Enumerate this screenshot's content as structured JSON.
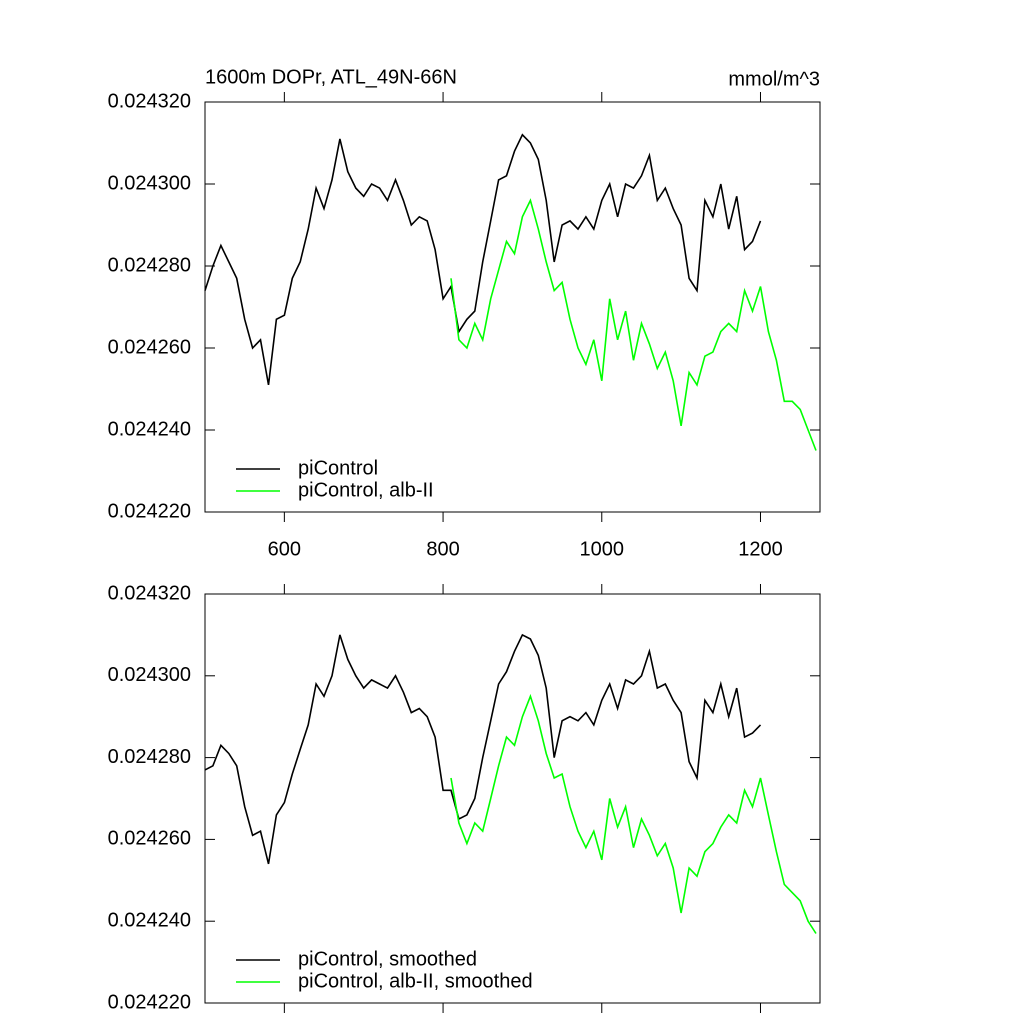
{
  "chart_data": [
    {
      "type": "line",
      "title": "1600m DOPr, ATL_49N-66N",
      "units": "mmol/m^3",
      "x": [
        500,
        510,
        520,
        530,
        540,
        550,
        560,
        570,
        580,
        590,
        600,
        610,
        620,
        630,
        640,
        650,
        660,
        670,
        680,
        690,
        700,
        710,
        720,
        730,
        740,
        750,
        760,
        770,
        780,
        790,
        800,
        810,
        820,
        830,
        840,
        850,
        860,
        870,
        880,
        890,
        900,
        910,
        920,
        930,
        940,
        950,
        960,
        970,
        980,
        990,
        1000,
        1010,
        1020,
        1030,
        1040,
        1050,
        1060,
        1070,
        1080,
        1090,
        1100,
        1110,
        1120,
        1130,
        1140,
        1150,
        1160,
        1170,
        1180,
        1190,
        1200,
        1210,
        1220,
        1230,
        1240,
        1250,
        1260,
        1270
      ],
      "xlim": [
        500,
        1275
      ],
      "xticks": [
        600,
        800,
        1000,
        1200
      ],
      "x_tick_labels": true,
      "ylim": [
        0.02422,
        0.02432
      ],
      "yticks": [
        {
          "value": 0.02422,
          "label": "0.024220"
        },
        {
          "value": 0.02424,
          "label": "0.024240"
        },
        {
          "value": 0.02426,
          "label": "0.024260"
        },
        {
          "value": 0.02428,
          "label": "0.024280"
        },
        {
          "value": 0.0243,
          "label": "0.024300"
        },
        {
          "value": 0.02432,
          "label": "0.024320"
        }
      ],
      "legend": "lower left",
      "series": [
        {
          "name": "piControl",
          "color": "#000000",
          "values": [
            0.024274,
            0.02428,
            0.024285,
            0.024281,
            0.024277,
            0.024267,
            0.02426,
            0.024262,
            0.024251,
            0.024267,
            0.024268,
            0.024277,
            0.024281,
            0.024289,
            0.024299,
            0.024294,
            0.024301,
            0.024311,
            0.024303,
            0.024299,
            0.024297,
            0.0243,
            0.024299,
            0.024296,
            0.024301,
            0.024296,
            0.02429,
            0.024292,
            0.024291,
            0.024284,
            0.024272,
            0.024275,
            0.024264,
            0.024267,
            0.024269,
            0.024281,
            0.024291,
            0.024301,
            0.024302,
            0.024308,
            0.024312,
            0.02431,
            0.024306,
            0.024296,
            0.024281,
            0.02429,
            0.024291,
            0.024289,
            0.024292,
            0.024289,
            0.024296,
            0.0243,
            0.024292,
            0.0243,
            0.024299,
            0.024302,
            0.024307,
            0.024296,
            0.024299,
            0.024294,
            0.02429,
            0.024277,
            0.024274,
            0.024296,
            0.024292,
            0.0243,
            0.024289,
            0.024297,
            0.024284,
            0.024286,
            0.024291,
            null,
            null,
            null,
            null,
            null,
            null,
            null
          ]
        },
        {
          "name": "piControl, alb-II",
          "color": "#00ff00",
          "values": [
            null,
            null,
            null,
            null,
            null,
            null,
            null,
            null,
            null,
            null,
            null,
            null,
            null,
            null,
            null,
            null,
            null,
            null,
            null,
            null,
            null,
            null,
            null,
            null,
            null,
            null,
            null,
            null,
            null,
            null,
            null,
            0.024277,
            0.024262,
            0.02426,
            0.024266,
            0.024262,
            0.024272,
            0.024279,
            0.024286,
            0.024283,
            0.024292,
            0.024296,
            0.024289,
            0.024281,
            0.024274,
            0.024276,
            0.024267,
            0.02426,
            0.024256,
            0.024262,
            0.024252,
            0.024272,
            0.024262,
            0.024269,
            0.024257,
            0.024266,
            0.024261,
            0.024255,
            0.024259,
            0.024252,
            0.024241,
            0.024254,
            0.024251,
            0.024258,
            0.024259,
            0.024264,
            0.024266,
            0.024264,
            0.024274,
            0.024269,
            0.024275,
            0.024264,
            0.024257,
            0.024247,
            0.024247,
            0.024245,
            0.02424,
            0.024235
          ]
        }
      ]
    },
    {
      "type": "line",
      "x": [
        500,
        510,
        520,
        530,
        540,
        550,
        560,
        570,
        580,
        590,
        600,
        610,
        620,
        630,
        640,
        650,
        660,
        670,
        680,
        690,
        700,
        710,
        720,
        730,
        740,
        750,
        760,
        770,
        780,
        790,
        800,
        810,
        820,
        830,
        840,
        850,
        860,
        870,
        880,
        890,
        900,
        910,
        920,
        930,
        940,
        950,
        960,
        970,
        980,
        990,
        1000,
        1010,
        1020,
        1030,
        1040,
        1050,
        1060,
        1070,
        1080,
        1090,
        1100,
        1110,
        1120,
        1130,
        1140,
        1150,
        1160,
        1170,
        1180,
        1190,
        1200,
        1210,
        1220,
        1230,
        1240,
        1250,
        1260,
        1270
      ],
      "xlim": [
        500,
        1275
      ],
      "xticks": [
        600,
        800,
        1000,
        1200
      ],
      "x_tick_labels": false,
      "ylim": [
        0.02422,
        0.02432
      ],
      "yticks": [
        {
          "value": 0.02422,
          "label": "0.024220"
        },
        {
          "value": 0.02424,
          "label": "0.024240"
        },
        {
          "value": 0.02426,
          "label": "0.024260"
        },
        {
          "value": 0.02428,
          "label": "0.024280"
        },
        {
          "value": 0.0243,
          "label": "0.024300"
        },
        {
          "value": 0.02432,
          "label": "0.024320"
        }
      ],
      "legend": "lower left",
      "series": [
        {
          "name": "piControl, smoothed",
          "color": "#000000",
          "values": [
            0.024277,
            0.024278,
            0.024283,
            0.024281,
            0.024278,
            0.024268,
            0.024261,
            0.024262,
            0.024254,
            0.024266,
            0.024269,
            0.024276,
            0.024282,
            0.024288,
            0.024298,
            0.024295,
            0.0243,
            0.02431,
            0.024304,
            0.0243,
            0.024297,
            0.024299,
            0.024298,
            0.024297,
            0.0243,
            0.024296,
            0.024291,
            0.024292,
            0.02429,
            0.024285,
            0.024272,
            0.024272,
            0.024265,
            0.024266,
            0.02427,
            0.02428,
            0.024289,
            0.024298,
            0.024301,
            0.024306,
            0.02431,
            0.024309,
            0.024305,
            0.024297,
            0.02428,
            0.024289,
            0.02429,
            0.024289,
            0.024291,
            0.024288,
            0.024294,
            0.024298,
            0.024292,
            0.024299,
            0.024298,
            0.0243,
            0.024306,
            0.024297,
            0.024298,
            0.024294,
            0.024291,
            0.024279,
            0.024275,
            0.024294,
            0.024291,
            0.024298,
            0.02429,
            0.024297,
            0.024285,
            0.024286,
            0.024288,
            null,
            null,
            null,
            null,
            null,
            null,
            null
          ]
        },
        {
          "name": "piControl, alb-II, smoothed",
          "color": "#00ff00",
          "values": [
            null,
            null,
            null,
            null,
            null,
            null,
            null,
            null,
            null,
            null,
            null,
            null,
            null,
            null,
            null,
            null,
            null,
            null,
            null,
            null,
            null,
            null,
            null,
            null,
            null,
            null,
            null,
            null,
            null,
            null,
            null,
            0.024275,
            0.024264,
            0.024259,
            0.024264,
            0.024262,
            0.02427,
            0.024278,
            0.024285,
            0.024283,
            0.02429,
            0.024295,
            0.024289,
            0.024281,
            0.024275,
            0.024276,
            0.024268,
            0.024262,
            0.024258,
            0.024262,
            0.024255,
            0.02427,
            0.024263,
            0.024268,
            0.024258,
            0.024265,
            0.024261,
            0.024256,
            0.024259,
            0.024253,
            0.024242,
            0.024253,
            0.024251,
            0.024257,
            0.024259,
            0.024263,
            0.024266,
            0.024264,
            0.024272,
            0.024268,
            0.024275,
            0.024266,
            0.024257,
            0.024249,
            0.024247,
            0.024245,
            0.02424,
            0.024237
          ]
        }
      ]
    }
  ]
}
